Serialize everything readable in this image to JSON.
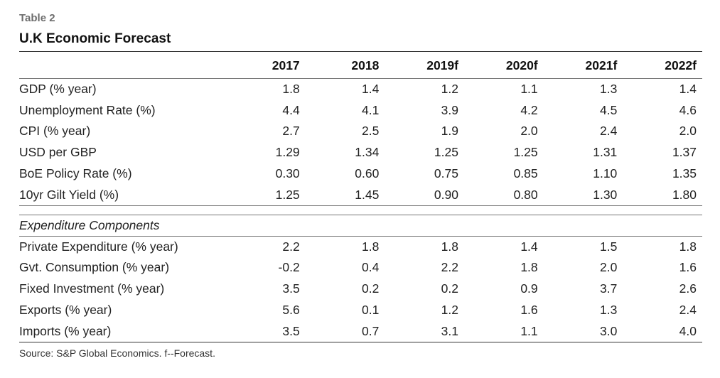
{
  "table_number": "Table 2",
  "title": "U.K Economic Forecast",
  "columns": [
    "2017",
    "2018",
    "2019f",
    "2020f",
    "2021f",
    "2022f"
  ],
  "rows": [
    {
      "label": "GDP (% year)",
      "values": [
        "1.8",
        "1.4",
        "1.2",
        "1.1",
        "1.3",
        "1.4"
      ]
    },
    {
      "label": "Unemployment Rate (%)",
      "values": [
        "4.4",
        "4.1",
        "3.9",
        "4.2",
        "4.5",
        "4.6"
      ]
    },
    {
      "label": "CPI (% year)",
      "values": [
        "2.7",
        "2.5",
        "1.9",
        "2.0",
        "2.4",
        "2.0"
      ]
    },
    {
      "label": "USD per GBP",
      "values": [
        "1.29",
        "1.34",
        "1.25",
        "1.25",
        "1.31",
        "1.37"
      ]
    },
    {
      "label": "BoE Policy Rate (%)",
      "values": [
        "0.30",
        "0.60",
        "0.75",
        "0.85",
        "1.10",
        "1.35"
      ]
    },
    {
      "label": "10yr Gilt Yield (%)",
      "values": [
        "1.25",
        "1.45",
        "0.90",
        "0.80",
        "1.30",
        "1.80"
      ]
    }
  ],
  "expenditure_title": "Expenditure Components",
  "expenditure_rows": [
    {
      "label": "Private Expenditure (% year)",
      "values": [
        "2.2",
        "1.8",
        "1.8",
        "1.4",
        "1.5",
        "1.8"
      ]
    },
    {
      "label": "Gvt. Consumption (% year)",
      "values": [
        "-0.2",
        "0.4",
        "2.2",
        "1.8",
        "2.0",
        "1.6"
      ]
    },
    {
      "label": "Fixed Investment (% year)",
      "values": [
        "3.5",
        "0.2",
        "0.2",
        "0.9",
        "3.7",
        "2.6"
      ]
    },
    {
      "label": "Exports (% year)",
      "values": [
        "5.6",
        "0.1",
        "1.2",
        "1.6",
        "1.3",
        "2.4"
      ]
    },
    {
      "label": "Imports (% year)",
      "values": [
        "3.5",
        "0.7",
        "3.1",
        "1.1",
        "3.0",
        "4.0"
      ]
    }
  ],
  "source": "Source: S&P Global Economics. f--Forecast."
}
